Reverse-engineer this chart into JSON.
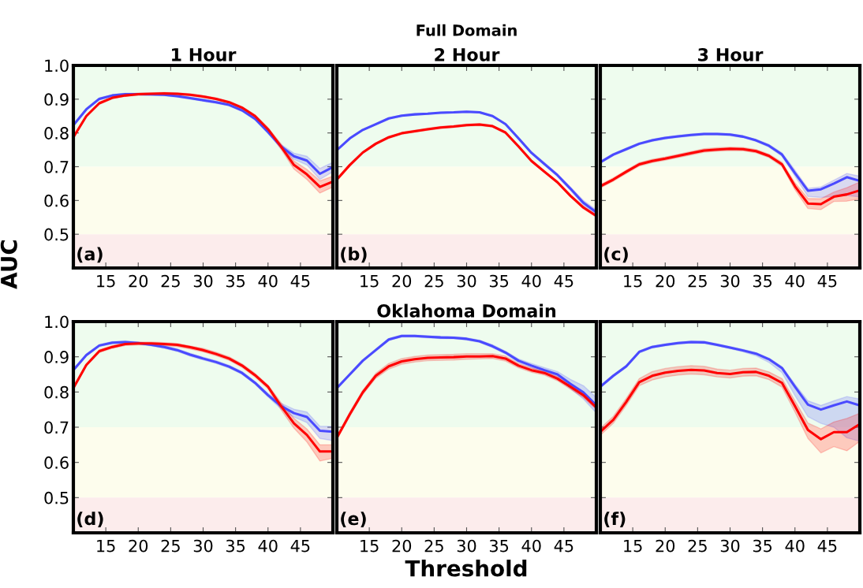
{
  "chart_data": [
    {
      "type": "line",
      "title": "1 Hour",
      "ylabel": "AUC",
      "annotations": [
        "(a)"
      ],
      "x": [
        10,
        12,
        14,
        16,
        18,
        20,
        22,
        24,
        26,
        28,
        30,
        32,
        34,
        36,
        38,
        40,
        42,
        44,
        46,
        48,
        50
      ],
      "xlim": [
        10,
        50
      ],
      "xticks": [
        15,
        20,
        25,
        30,
        35,
        40,
        45
      ],
      "ylim": [
        0.4,
        1.0
      ],
      "yticks": [
        0.5,
        0.6,
        0.7,
        0.8,
        0.9,
        {
          "value": 1.0,
          "label": "1.0"
        }
      ],
      "grid": false,
      "line_style": "solid",
      "marker": "none",
      "bands": [
        {
          "axis": "y",
          "from": 0.7,
          "to": 1.0,
          "color": "#eefcee"
        },
        {
          "axis": "y",
          "from": 0.5,
          "to": 0.7,
          "color": "#fdfded"
        },
        {
          "axis": "y",
          "from": 0.4,
          "to": 0.5,
          "color": "#fcecec"
        }
      ],
      "series": [
        {
          "color": "#4a4aff",
          "values": [
            0.823,
            0.87,
            0.901,
            0.911,
            0.915,
            0.915,
            0.914,
            0.913,
            0.909,
            0.903,
            0.897,
            0.891,
            0.883,
            0.867,
            0.842,
            0.803,
            0.76,
            0.731,
            0.718,
            0.679,
            0.699
          ],
          "lower": [
            0.82,
            0.867,
            0.898,
            0.908,
            0.912,
            0.912,
            0.911,
            0.91,
            0.906,
            0.9,
            0.894,
            0.888,
            0.88,
            0.864,
            0.838,
            0.798,
            0.754,
            0.722,
            0.705,
            0.662,
            0.685
          ],
          "upper": [
            0.826,
            0.873,
            0.904,
            0.914,
            0.918,
            0.918,
            0.917,
            0.916,
            0.912,
            0.906,
            0.9,
            0.894,
            0.886,
            0.87,
            0.846,
            0.808,
            0.766,
            0.74,
            0.731,
            0.695,
            0.713
          ]
        },
        {
          "color": "#ff0000",
          "values": [
            0.787,
            0.85,
            0.888,
            0.904,
            0.911,
            0.915,
            0.916,
            0.917,
            0.916,
            0.913,
            0.908,
            0.901,
            0.891,
            0.875,
            0.85,
            0.811,
            0.76,
            0.705,
            0.677,
            0.64,
            0.656
          ],
          "lower": [
            0.784,
            0.847,
            0.885,
            0.901,
            0.908,
            0.912,
            0.913,
            0.914,
            0.913,
            0.91,
            0.905,
            0.898,
            0.888,
            0.872,
            0.846,
            0.806,
            0.752,
            0.693,
            0.662,
            0.622,
            0.64
          ],
          "upper": [
            0.79,
            0.853,
            0.891,
            0.907,
            0.914,
            0.918,
            0.919,
            0.92,
            0.919,
            0.916,
            0.911,
            0.904,
            0.894,
            0.878,
            0.854,
            0.816,
            0.768,
            0.717,
            0.692,
            0.658,
            0.672
          ]
        }
      ]
    },
    {
      "type": "line",
      "title": "2 Hour",
      "subtitle": "Full Domain",
      "annotations": [
        "(b)"
      ],
      "x": [
        10,
        12,
        14,
        16,
        18,
        20,
        22,
        24,
        26,
        28,
        30,
        32,
        34,
        36,
        38,
        40,
        42,
        44,
        46,
        48,
        50
      ],
      "xlim": [
        10,
        50
      ],
      "xticks": [
        15,
        20,
        25,
        30,
        35,
        40,
        45
      ],
      "ylim": [
        0.4,
        1.0
      ],
      "yticks": [
        0.5,
        0.6,
        0.7,
        0.8,
        0.9,
        1.0
      ],
      "tick_labels": "x",
      "grid": false,
      "line_style": "solid",
      "marker": "none",
      "bands": [
        {
          "axis": "y",
          "from": 0.7,
          "to": 1.0,
          "color": "#eefcee"
        },
        {
          "axis": "y",
          "from": 0.5,
          "to": 0.7,
          "color": "#fdfded"
        },
        {
          "axis": "y",
          "from": 0.4,
          "to": 0.5,
          "color": "#fcecec"
        }
      ],
      "series": [
        {
          "color": "#4a4aff",
          "values": [
            0.749,
            0.784,
            0.809,
            0.826,
            0.843,
            0.851,
            0.855,
            0.857,
            0.86,
            0.861,
            0.863,
            0.861,
            0.85,
            0.826,
            0.784,
            0.741,
            0.708,
            0.675,
            0.635,
            0.593,
            0.565
          ],
          "lower": [
            0.747,
            0.782,
            0.807,
            0.824,
            0.841,
            0.849,
            0.853,
            0.855,
            0.858,
            0.859,
            0.861,
            0.859,
            0.848,
            0.824,
            0.781,
            0.738,
            0.704,
            0.671,
            0.63,
            0.586,
            0.558
          ],
          "upper": [
            0.751,
            0.786,
            0.811,
            0.828,
            0.845,
            0.853,
            0.857,
            0.859,
            0.862,
            0.863,
            0.865,
            0.863,
            0.852,
            0.828,
            0.787,
            0.744,
            0.712,
            0.679,
            0.64,
            0.6,
            0.572
          ]
        },
        {
          "color": "#ff0000",
          "values": [
            0.662,
            0.705,
            0.742,
            0.768,
            0.787,
            0.799,
            0.805,
            0.811,
            0.816,
            0.819,
            0.823,
            0.825,
            0.82,
            0.801,
            0.76,
            0.717,
            0.685,
            0.654,
            0.614,
            0.579,
            0.554
          ],
          "lower": [
            0.659,
            0.702,
            0.739,
            0.765,
            0.784,
            0.796,
            0.802,
            0.808,
            0.813,
            0.816,
            0.82,
            0.822,
            0.817,
            0.798,
            0.757,
            0.714,
            0.682,
            0.651,
            0.611,
            0.575,
            0.55
          ],
          "upper": [
            0.665,
            0.708,
            0.745,
            0.771,
            0.79,
            0.802,
            0.808,
            0.814,
            0.819,
            0.822,
            0.826,
            0.828,
            0.823,
            0.804,
            0.763,
            0.72,
            0.688,
            0.657,
            0.617,
            0.583,
            0.558
          ]
        }
      ]
    },
    {
      "type": "line",
      "title": "3 Hour",
      "annotations": [
        "(c)"
      ],
      "x": [
        10,
        12,
        14,
        16,
        18,
        20,
        22,
        24,
        26,
        28,
        30,
        32,
        34,
        36,
        38,
        40,
        42,
        44,
        46,
        48,
        50
      ],
      "xlim": [
        10,
        50
      ],
      "xticks": [
        15,
        20,
        25,
        30,
        35,
        40,
        45
      ],
      "ylim": [
        0.4,
        1.0
      ],
      "yticks": [
        0.5,
        0.6,
        0.7,
        0.8,
        0.9,
        1.0
      ],
      "tick_labels": "x",
      "grid": false,
      "line_style": "solid",
      "marker": "none",
      "bands": [
        {
          "axis": "y",
          "from": 0.7,
          "to": 1.0,
          "color": "#eefcee"
        },
        {
          "axis": "y",
          "from": 0.5,
          "to": 0.7,
          "color": "#fdfded"
        },
        {
          "axis": "y",
          "from": 0.4,
          "to": 0.5,
          "color": "#fcecec"
        }
      ],
      "series": [
        {
          "color": "#4a4aff",
          "values": [
            0.713,
            0.736,
            0.752,
            0.768,
            0.778,
            0.785,
            0.79,
            0.794,
            0.797,
            0.797,
            0.795,
            0.789,
            0.778,
            0.762,
            0.736,
            0.681,
            0.629,
            0.633,
            0.65,
            0.669,
            0.658
          ],
          "lower": [
            0.71,
            0.733,
            0.749,
            0.765,
            0.775,
            0.782,
            0.787,
            0.791,
            0.794,
            0.794,
            0.792,
            0.786,
            0.775,
            0.758,
            0.731,
            0.672,
            0.612,
            0.609,
            0.612,
            0.615,
            0.61
          ],
          "upper": [
            0.716,
            0.739,
            0.755,
            0.771,
            0.781,
            0.788,
            0.793,
            0.797,
            0.8,
            0.8,
            0.798,
            0.792,
            0.781,
            0.766,
            0.741,
            0.69,
            0.636,
            0.64,
            0.66,
            0.68,
            0.672
          ]
        },
        {
          "color": "#ff0000",
          "values": [
            0.642,
            0.662,
            0.685,
            0.707,
            0.717,
            0.724,
            0.732,
            0.74,
            0.748,
            0.751,
            0.753,
            0.752,
            0.746,
            0.732,
            0.707,
            0.642,
            0.591,
            0.589,
            0.611,
            0.618,
            0.63
          ],
          "lower": [
            0.637,
            0.657,
            0.68,
            0.702,
            0.712,
            0.719,
            0.727,
            0.735,
            0.743,
            0.746,
            0.748,
            0.747,
            0.741,
            0.727,
            0.701,
            0.632,
            0.576,
            0.573,
            0.597,
            0.598,
            0.605
          ],
          "upper": [
            0.647,
            0.667,
            0.69,
            0.712,
            0.722,
            0.729,
            0.737,
            0.745,
            0.753,
            0.756,
            0.758,
            0.757,
            0.751,
            0.737,
            0.713,
            0.652,
            0.606,
            0.605,
            0.625,
            0.638,
            0.655
          ]
        }
      ]
    },
    {
      "type": "line",
      "annotations": [
        "(d)"
      ],
      "x": [
        10,
        12,
        14,
        16,
        18,
        20,
        22,
        24,
        26,
        28,
        30,
        32,
        34,
        36,
        38,
        40,
        42,
        44,
        46,
        48,
        50
      ],
      "xlim": [
        10,
        50
      ],
      "xticks": [
        15,
        20,
        25,
        30,
        35,
        40,
        45
      ],
      "ylim": [
        0.4,
        1.0
      ],
      "yticks": [
        0.5,
        0.6,
        0.7,
        0.8,
        0.9,
        {
          "value": 1.0,
          "label": "1.0"
        }
      ],
      "grid": false,
      "line_style": "solid",
      "marker": "none",
      "bands": [
        {
          "axis": "y",
          "from": 0.7,
          "to": 1.0,
          "color": "#eefcee"
        },
        {
          "axis": "y",
          "from": 0.5,
          "to": 0.7,
          "color": "#fdfded"
        },
        {
          "axis": "y",
          "from": 0.4,
          "to": 0.5,
          "color": "#fcecec"
        }
      ],
      "series": [
        {
          "color": "#4a4aff",
          "values": [
            0.862,
            0.905,
            0.932,
            0.94,
            0.942,
            0.939,
            0.934,
            0.928,
            0.919,
            0.906,
            0.895,
            0.885,
            0.872,
            0.854,
            0.826,
            0.791,
            0.76,
            0.74,
            0.729,
            0.69,
            0.687
          ],
          "lower": [
            0.859,
            0.902,
            0.929,
            0.937,
            0.939,
            0.936,
            0.931,
            0.924,
            0.915,
            0.902,
            0.891,
            0.881,
            0.868,
            0.85,
            0.822,
            0.786,
            0.752,
            0.729,
            0.713,
            0.668,
            0.662
          ],
          "upper": [
            0.865,
            0.908,
            0.935,
            0.943,
            0.945,
            0.942,
            0.937,
            0.932,
            0.923,
            0.91,
            0.899,
            0.889,
            0.876,
            0.858,
            0.83,
            0.796,
            0.768,
            0.751,
            0.743,
            0.703,
            0.702
          ]
        },
        {
          "color": "#ff0000",
          "values": [
            0.811,
            0.877,
            0.916,
            0.928,
            0.936,
            0.938,
            0.938,
            0.936,
            0.934,
            0.927,
            0.919,
            0.908,
            0.895,
            0.875,
            0.848,
            0.815,
            0.76,
            0.711,
            0.678,
            0.631,
            0.631
          ],
          "lower": [
            0.808,
            0.874,
            0.912,
            0.924,
            0.932,
            0.934,
            0.934,
            0.932,
            0.929,
            0.922,
            0.914,
            0.903,
            0.89,
            0.87,
            0.843,
            0.809,
            0.75,
            0.697,
            0.658,
            0.604,
            0.612
          ],
          "upper": [
            0.814,
            0.88,
            0.92,
            0.932,
            0.94,
            0.942,
            0.942,
            0.94,
            0.938,
            0.931,
            0.924,
            0.913,
            0.9,
            0.88,
            0.853,
            0.82,
            0.77,
            0.725,
            0.695,
            0.65,
            0.65
          ]
        }
      ]
    },
    {
      "type": "line",
      "title": "Oklahoma Domain",
      "xlabel": "Threshold",
      "annotations": [
        "(e)"
      ],
      "x": [
        10,
        12,
        14,
        16,
        18,
        20,
        22,
        24,
        26,
        28,
        30,
        32,
        34,
        36,
        38,
        40,
        42,
        44,
        46,
        48,
        50
      ],
      "xlim": [
        10,
        50
      ],
      "xticks": [
        15,
        20,
        25,
        30,
        35,
        40,
        45
      ],
      "ylim": [
        0.4,
        1.0
      ],
      "yticks": [
        0.5,
        0.6,
        0.7,
        0.8,
        0.9,
        1.0
      ],
      "tick_labels": "x",
      "grid": false,
      "line_style": "solid",
      "marker": "none",
      "bands": [
        {
          "axis": "y",
          "from": 0.7,
          "to": 1.0,
          "color": "#eefcee"
        },
        {
          "axis": "y",
          "from": 0.5,
          "to": 0.7,
          "color": "#fdfded"
        },
        {
          "axis": "y",
          "from": 0.4,
          "to": 0.5,
          "color": "#fcecec"
        }
      ],
      "series": [
        {
          "color": "#4a4aff",
          "values": [
            0.811,
            0.85,
            0.889,
            0.919,
            0.949,
            0.959,
            0.959,
            0.957,
            0.955,
            0.954,
            0.951,
            0.944,
            0.93,
            0.912,
            0.889,
            0.875,
            0.862,
            0.85,
            0.823,
            0.799,
            0.762
          ],
          "lower": [
            0.808,
            0.847,
            0.886,
            0.916,
            0.946,
            0.956,
            0.956,
            0.954,
            0.952,
            0.951,
            0.948,
            0.941,
            0.926,
            0.908,
            0.884,
            0.869,
            0.855,
            0.842,
            0.81,
            0.78,
            0.74
          ],
          "upper": [
            0.814,
            0.853,
            0.892,
            0.922,
            0.952,
            0.962,
            0.962,
            0.96,
            0.958,
            0.957,
            0.954,
            0.947,
            0.934,
            0.916,
            0.894,
            0.881,
            0.869,
            0.858,
            0.836,
            0.818,
            0.784
          ]
        },
        {
          "color": "#ff0000",
          "values": [
            0.67,
            0.737,
            0.799,
            0.846,
            0.873,
            0.887,
            0.893,
            0.897,
            0.898,
            0.899,
            0.901,
            0.901,
            0.902,
            0.895,
            0.875,
            0.862,
            0.854,
            0.838,
            0.815,
            0.791,
            0.756
          ],
          "lower": [
            0.665,
            0.731,
            0.793,
            0.839,
            0.865,
            0.879,
            0.885,
            0.889,
            0.89,
            0.891,
            0.893,
            0.894,
            0.895,
            0.888,
            0.869,
            0.856,
            0.848,
            0.832,
            0.808,
            0.784,
            0.75
          ],
          "upper": [
            0.675,
            0.743,
            0.805,
            0.853,
            0.881,
            0.895,
            0.901,
            0.905,
            0.906,
            0.907,
            0.909,
            0.909,
            0.909,
            0.902,
            0.881,
            0.868,
            0.86,
            0.844,
            0.822,
            0.798,
            0.762
          ]
        }
      ]
    },
    {
      "type": "line",
      "annotations": [
        "(f)"
      ],
      "x": [
        10,
        12,
        14,
        16,
        18,
        20,
        22,
        24,
        26,
        28,
        30,
        32,
        34,
        36,
        38,
        40,
        42,
        44,
        46,
        48,
        50
      ],
      "xlim": [
        10,
        50
      ],
      "xticks": [
        15,
        20,
        25,
        30,
        35,
        40,
        45
      ],
      "ylim": [
        0.4,
        1.0
      ],
      "yticks": [
        0.5,
        0.6,
        0.7,
        0.8,
        0.9,
        1.0
      ],
      "tick_labels": "x",
      "grid": false,
      "line_style": "solid",
      "marker": "none",
      "bands": [
        {
          "axis": "y",
          "from": 0.7,
          "to": 1.0,
          "color": "#eefcee"
        },
        {
          "axis": "y",
          "from": 0.5,
          "to": 0.7,
          "color": "#fdfded"
        },
        {
          "axis": "y",
          "from": 0.4,
          "to": 0.5,
          "color": "#fcecec"
        }
      ],
      "series": [
        {
          "color": "#4a4aff",
          "values": [
            0.815,
            0.846,
            0.873,
            0.914,
            0.928,
            0.934,
            0.939,
            0.942,
            0.941,
            0.934,
            0.926,
            0.918,
            0.909,
            0.893,
            0.868,
            0.815,
            0.764,
            0.75,
            0.762,
            0.773,
            0.762
          ],
          "lower": [
            0.812,
            0.843,
            0.87,
            0.911,
            0.925,
            0.931,
            0.936,
            0.939,
            0.938,
            0.931,
            0.923,
            0.914,
            0.903,
            0.884,
            0.855,
            0.79,
            0.73,
            0.711,
            0.7,
            0.67,
            0.66
          ],
          "upper": [
            0.818,
            0.849,
            0.876,
            0.917,
            0.931,
            0.937,
            0.942,
            0.945,
            0.944,
            0.937,
            0.929,
            0.921,
            0.912,
            0.896,
            0.872,
            0.822,
            0.775,
            0.762,
            0.775,
            0.787,
            0.78
          ]
        },
        {
          "color": "#ff0000",
          "values": [
            0.687,
            0.721,
            0.772,
            0.828,
            0.846,
            0.855,
            0.86,
            0.863,
            0.861,
            0.854,
            0.851,
            0.856,
            0.857,
            0.846,
            0.826,
            0.76,
            0.692,
            0.666,
            0.686,
            0.686,
            0.709
          ],
          "lower": [
            0.677,
            0.711,
            0.762,
            0.818,
            0.834,
            0.843,
            0.848,
            0.851,
            0.849,
            0.843,
            0.84,
            0.845,
            0.846,
            0.835,
            0.814,
            0.743,
            0.668,
            0.627,
            0.645,
            0.633,
            0.66
          ],
          "upper": [
            0.697,
            0.731,
            0.782,
            0.838,
            0.858,
            0.867,
            0.872,
            0.875,
            0.873,
            0.865,
            0.862,
            0.867,
            0.868,
            0.857,
            0.838,
            0.775,
            0.712,
            0.695,
            0.715,
            0.725,
            0.74
          ]
        }
      ]
    }
  ]
}
